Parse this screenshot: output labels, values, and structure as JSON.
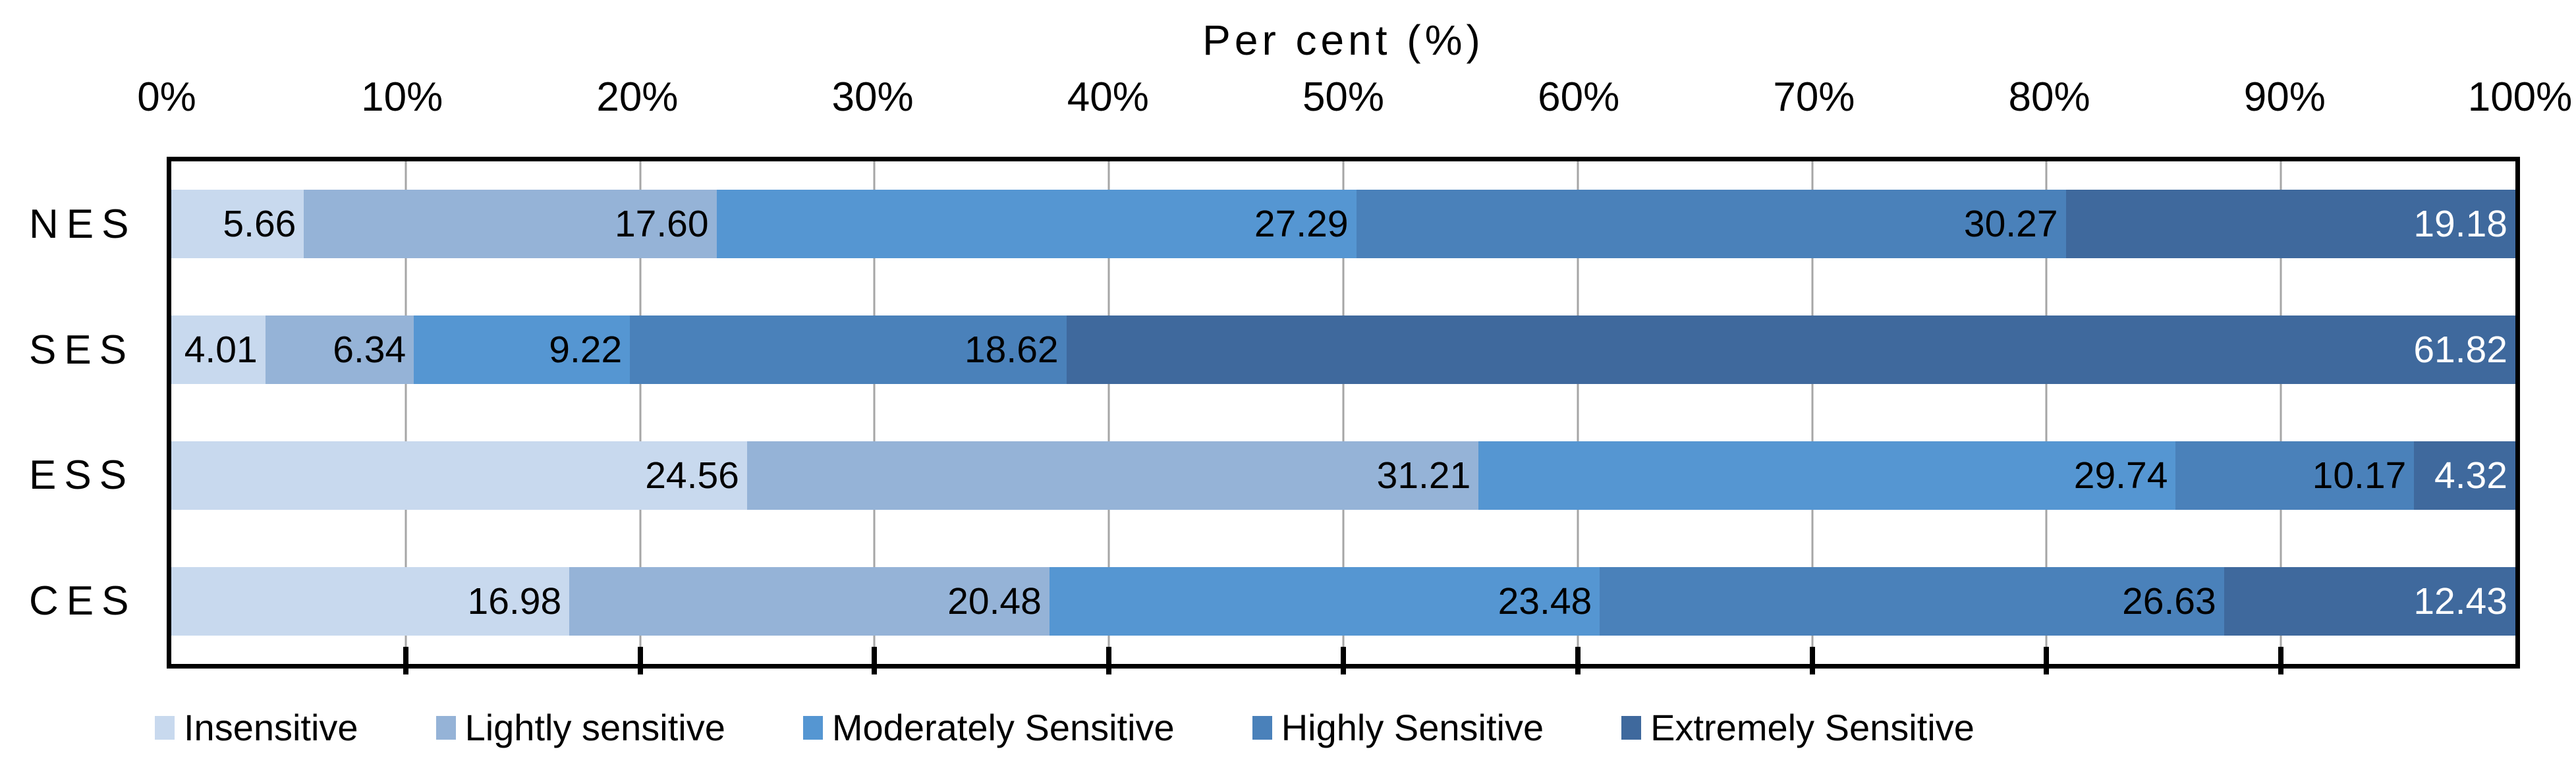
{
  "chart_data": {
    "type": "bar",
    "orientation": "horizontal-stacked",
    "title": "Per cent (%)",
    "categories": [
      "NES",
      "SES",
      "ESS",
      "CES"
    ],
    "series": [
      {
        "name": "Insensitive",
        "color": "#c8d9ee",
        "values": [
          5.66,
          4.01,
          24.56,
          16.98
        ]
      },
      {
        "name": "Lightly sensitive",
        "color": "#95b3d7",
        "values": [
          17.6,
          6.34,
          31.21,
          20.48
        ]
      },
      {
        "name": "Moderately Sensitive",
        "color": "#5596d2",
        "values": [
          27.29,
          9.22,
          29.74,
          23.48
        ]
      },
      {
        "name": "Highly Sensitive",
        "color": "#4a81ba",
        "values": [
          30.27,
          18.62,
          10.17,
          26.63
        ]
      },
      {
        "name": "Extremely Sensitive",
        "color": "#3f699d",
        "values": [
          19.18,
          61.82,
          4.32,
          12.43
        ]
      }
    ],
    "x_ticks": [
      "0%",
      "10%",
      "20%",
      "30%",
      "40%",
      "50%",
      "60%",
      "70%",
      "80%",
      "90%",
      "100%"
    ],
    "xlim": [
      0,
      100
    ],
    "grid": true,
    "grid_color": "#a6a6a6",
    "axis_color": "#000000",
    "value_label_decimals": 2,
    "value_label_color": "#000000",
    "last_segment_value_label_color": "#ffffff",
    "legend_position": "bottom",
    "xlabel": "Per cent (%)",
    "ylabel": ""
  }
}
